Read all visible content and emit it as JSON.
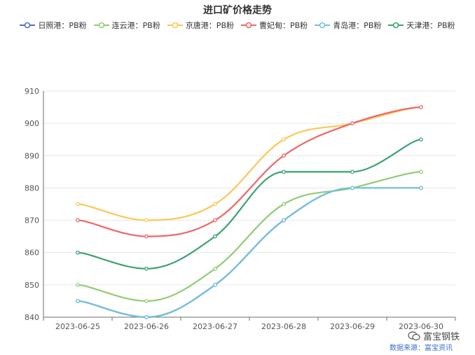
{
  "chart_data": {
    "type": "line",
    "title": "进口矿价格走势",
    "categories": [
      "2023-06-25",
      "2023-06-26",
      "2023-06-27",
      "2023-06-28",
      "2023-06-29",
      "2023-06-30"
    ],
    "ylim": [
      840,
      910
    ],
    "yticks": [
      840,
      850,
      860,
      870,
      880,
      890,
      900,
      910
    ],
    "grid": true,
    "smooth": true,
    "legend_position": "top-center",
    "series": [
      {
        "name": "日照港：PB粉",
        "color": "#5470c6",
        "values": [
          845,
          840,
          850,
          870,
          880,
          880
        ]
      },
      {
        "name": "连云港：PB粉",
        "color": "#91cc75",
        "values": [
          850,
          845,
          855,
          875,
          880,
          885
        ]
      },
      {
        "name": "京唐港：PB粉",
        "color": "#fac858",
        "values": [
          875,
          870,
          875,
          895,
          900,
          905
        ]
      },
      {
        "name": "曹妃甸：PB粉",
        "color": "#ee6666",
        "values": [
          870,
          865,
          870,
          890,
          900,
          905
        ]
      },
      {
        "name": "青岛港：PB粉",
        "color": "#73c0de",
        "values": [
          845,
          840,
          850,
          870,
          880,
          880
        ]
      },
      {
        "name": "天津港：PB粉",
        "color": "#3ba272",
        "values": [
          860,
          855,
          865,
          885,
          885,
          895
        ]
      }
    ]
  },
  "watermark": "富宝钢铁",
  "source": "数据来源：富宝资讯"
}
